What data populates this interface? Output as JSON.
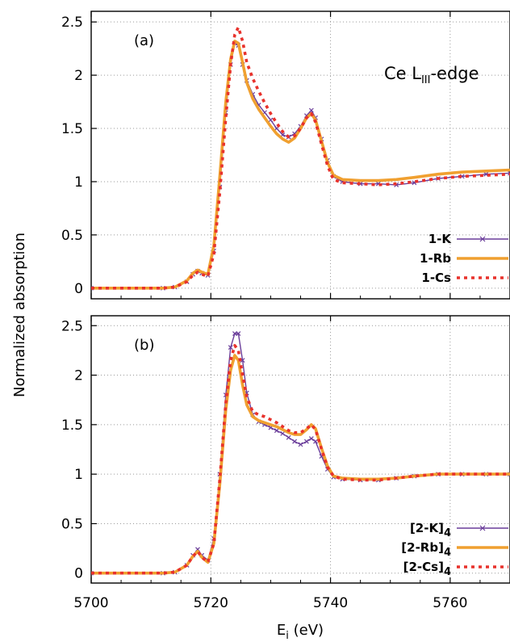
{
  "chart_data": [
    {
      "type": "line",
      "panel_label": "(a)",
      "annotation": {
        "base": "Ce L",
        "sub": "III",
        "suffix": "-edge"
      },
      "xlim": [
        5700,
        5770
      ],
      "ylim": [
        -0.1,
        2.6
      ],
      "x_ticks": [
        5700,
        5720,
        5740,
        5760
      ],
      "y_ticks": [
        0,
        0.5,
        1,
        1.5,
        2,
        2.5
      ],
      "y_tick_labels": [
        "0",
        "0.5",
        "1",
        "1.5",
        "2",
        "2.5"
      ],
      "grid": true,
      "legend_position": "bottom-right",
      "series": [
        {
          "name": "1-K",
          "name_sub": "",
          "color": "#6a3d9a",
          "style": "line-x",
          "x": [
            5700,
            5712,
            5714,
            5716,
            5717,
            5717.8,
            5718.5,
            5719.5,
            5720.5,
            5721.5,
            5722.5,
            5723.3,
            5724,
            5724.6,
            5725.3,
            5726,
            5727,
            5728,
            5729,
            5730,
            5731,
            5732,
            5733,
            5734,
            5735,
            5736,
            5736.8,
            5737.5,
            5738.5,
            5739.5,
            5740.5,
            5742,
            5745,
            5748,
            5751,
            5754,
            5758,
            5762,
            5766,
            5770
          ],
          "y": [
            0,
            0,
            0.01,
            0.06,
            0.13,
            0.16,
            0.14,
            0.12,
            0.35,
            0.95,
            1.65,
            2.1,
            2.3,
            2.28,
            2.1,
            1.95,
            1.82,
            1.72,
            1.65,
            1.58,
            1.5,
            1.44,
            1.42,
            1.45,
            1.52,
            1.62,
            1.67,
            1.6,
            1.4,
            1.2,
            1.05,
            1.0,
            0.98,
            0.98,
            0.97,
            0.99,
            1.03,
            1.05,
            1.07,
            1.08
          ]
        },
        {
          "name": "1-Rb",
          "name_sub": "",
          "color": "#f0a030",
          "style": "thick",
          "x": [
            5700,
            5712,
            5714,
            5716,
            5717,
            5717.8,
            5718.5,
            5719.5,
            5720.5,
            5721.5,
            5722.5,
            5723.3,
            5724,
            5724.6,
            5725.3,
            5726,
            5727,
            5728,
            5729,
            5730,
            5731,
            5732,
            5733,
            5734,
            5735,
            5736,
            5736.8,
            5737.5,
            5738.5,
            5739.5,
            5740.5,
            5742,
            5745,
            5748,
            5751,
            5754,
            5758,
            5762,
            5766,
            5770
          ],
          "y": [
            0,
            0,
            0.01,
            0.07,
            0.14,
            0.17,
            0.15,
            0.13,
            0.4,
            1.05,
            1.75,
            2.15,
            2.32,
            2.3,
            2.12,
            1.93,
            1.78,
            1.68,
            1.6,
            1.52,
            1.45,
            1.4,
            1.37,
            1.41,
            1.5,
            1.6,
            1.64,
            1.58,
            1.38,
            1.18,
            1.06,
            1.02,
            1.01,
            1.01,
            1.02,
            1.04,
            1.07,
            1.09,
            1.1,
            1.11
          ]
        },
        {
          "name": "1-Cs",
          "name_sub": "",
          "color": "#e8322c",
          "style": "dotted",
          "x": [
            5700,
            5712,
            5714,
            5716,
            5717,
            5717.8,
            5718.5,
            5719.5,
            5720.5,
            5721.5,
            5722.5,
            5723.3,
            5724,
            5724.6,
            5725.3,
            5726,
            5727,
            5728,
            5729,
            5730,
            5731,
            5732,
            5733,
            5734,
            5735,
            5736,
            5736.8,
            5737.5,
            5738.5,
            5739.5,
            5740.5,
            5742,
            5745,
            5748,
            5751,
            5754,
            5758,
            5762,
            5766,
            5770
          ],
          "y": [
            0,
            0,
            0.01,
            0.06,
            0.12,
            0.15,
            0.13,
            0.11,
            0.32,
            0.9,
            1.6,
            2.1,
            2.38,
            2.45,
            2.32,
            2.12,
            1.97,
            1.85,
            1.74,
            1.64,
            1.55,
            1.47,
            1.42,
            1.43,
            1.5,
            1.6,
            1.64,
            1.56,
            1.35,
            1.15,
            1.02,
            0.99,
            0.98,
            0.97,
            0.98,
            1.0,
            1.03,
            1.05,
            1.06,
            1.07
          ]
        }
      ]
    },
    {
      "type": "line",
      "panel_label": "(b)",
      "xlim": [
        5700,
        5770
      ],
      "ylim": [
        -0.1,
        2.6
      ],
      "x_ticks": [
        5700,
        5720,
        5740,
        5760
      ],
      "x_tick_labels": [
        "5700",
        "5720",
        "5740",
        "5760"
      ],
      "y_ticks": [
        0,
        0.5,
        1,
        1.5,
        2,
        2.5
      ],
      "y_tick_labels": [
        "0",
        "0.5",
        "1",
        "1.5",
        "2",
        "2.5"
      ],
      "xlabel": {
        "base": "E",
        "sub": "i",
        "suffix": " (eV)"
      },
      "grid": true,
      "legend_position": "bottom-right",
      "series": [
        {
          "name": "[2-K]",
          "name_sub": "4",
          "color": "#6a3d9a",
          "style": "line-x",
          "x": [
            5700,
            5712,
            5714,
            5716,
            5717,
            5717.8,
            5718.5,
            5719.5,
            5720.5,
            5721.5,
            5722.5,
            5723.3,
            5724,
            5724.6,
            5725.3,
            5726,
            5727,
            5728,
            5729,
            5730,
            5731,
            5732,
            5733,
            5734,
            5735,
            5736,
            5736.8,
            5737.5,
            5738.5,
            5739.5,
            5740.5,
            5742,
            5745,
            5748,
            5751,
            5754,
            5758,
            5762,
            5766,
            5770
          ],
          "y": [
            0,
            0,
            0.01,
            0.08,
            0.18,
            0.24,
            0.18,
            0.13,
            0.35,
            1.0,
            1.8,
            2.28,
            2.42,
            2.42,
            2.15,
            1.82,
            1.6,
            1.53,
            1.5,
            1.47,
            1.44,
            1.41,
            1.37,
            1.33,
            1.3,
            1.33,
            1.36,
            1.33,
            1.18,
            1.05,
            0.97,
            0.95,
            0.94,
            0.94,
            0.96,
            0.98,
            1.0,
            1.0,
            1.0,
            1.0
          ]
        },
        {
          "name": "[2-Rb]",
          "name_sub": "4",
          "color": "#f0a030",
          "style": "thick",
          "x": [
            5700,
            5712,
            5714,
            5716,
            5717,
            5717.8,
            5718.5,
            5719.5,
            5720.5,
            5721.5,
            5722.5,
            5723.3,
            5724,
            5724.6,
            5725.3,
            5726,
            5727,
            5728,
            5729,
            5730,
            5731,
            5732,
            5733,
            5734,
            5735,
            5736,
            5736.8,
            5737.5,
            5738.5,
            5739.5,
            5740.5,
            5742,
            5745,
            5748,
            5751,
            5754,
            5758,
            5762,
            5766,
            5770
          ],
          "y": [
            0,
            0,
            0.01,
            0.08,
            0.17,
            0.22,
            0.16,
            0.11,
            0.3,
            0.9,
            1.65,
            2.05,
            2.2,
            2.15,
            1.9,
            1.7,
            1.58,
            1.54,
            1.52,
            1.5,
            1.48,
            1.45,
            1.42,
            1.4,
            1.4,
            1.45,
            1.5,
            1.46,
            1.26,
            1.08,
            0.98,
            0.96,
            0.95,
            0.95,
            0.96,
            0.98,
            1.0,
            1.0,
            1.0,
            1.0
          ]
        },
        {
          "name": "[2-Cs]",
          "name_sub": "4",
          "color": "#e8322c",
          "style": "dotted",
          "x": [
            5700,
            5712,
            5714,
            5716,
            5717,
            5717.8,
            5718.5,
            5719.5,
            5720.5,
            5721.5,
            5722.5,
            5723.3,
            5724,
            5724.6,
            5725.3,
            5726,
            5727,
            5728,
            5729,
            5730,
            5731,
            5732,
            5733,
            5734,
            5735,
            5736,
            5736.8,
            5737.5,
            5738.5,
            5739.5,
            5740.5,
            5742,
            5745,
            5748,
            5751,
            5754,
            5758,
            5762,
            5766,
            5770
          ],
          "y": [
            0,
            0,
            0.01,
            0.08,
            0.17,
            0.22,
            0.16,
            0.11,
            0.3,
            0.95,
            1.72,
            2.15,
            2.3,
            2.25,
            2.0,
            1.78,
            1.63,
            1.6,
            1.58,
            1.55,
            1.52,
            1.48,
            1.44,
            1.42,
            1.42,
            1.46,
            1.5,
            1.45,
            1.25,
            1.07,
            0.98,
            0.95,
            0.94,
            0.94,
            0.96,
            0.98,
            1.0,
            1.0,
            1.0,
            1.0
          ]
        }
      ]
    }
  ],
  "ylabel": "Normalized absorption"
}
